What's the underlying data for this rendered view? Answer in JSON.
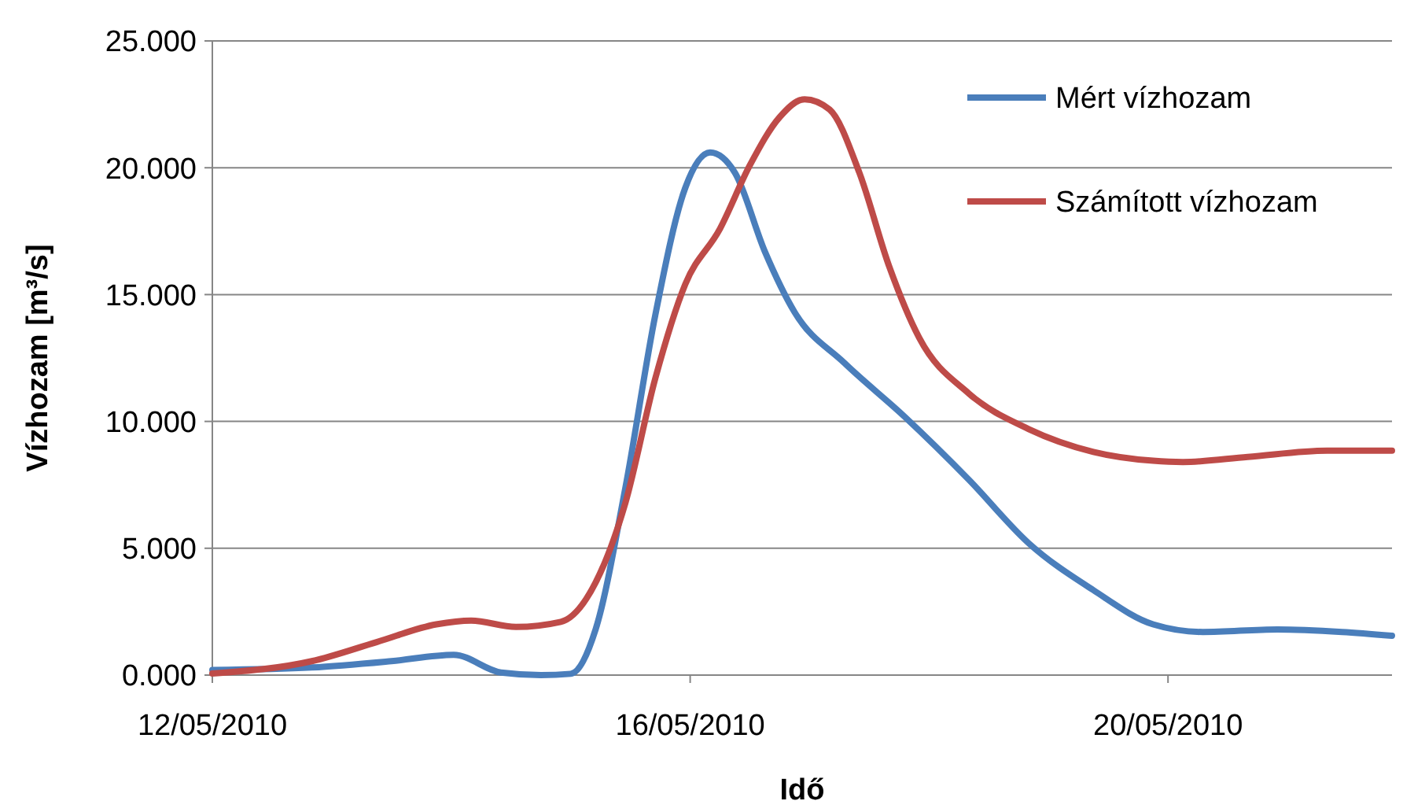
{
  "chart_data": {
    "type": "line",
    "xlabel": "Idő",
    "ylabel": "Vízhozam [m³/s]",
    "xlim": [
      "2010-05-12T00:00",
      "2010-05-21T21:00"
    ],
    "ylim": [
      0,
      25
    ],
    "xticks": [
      {
        "value": "2010-05-12",
        "label": "12/05/2010"
      },
      {
        "value": "2010-05-16",
        "label": "16/05/2010"
      },
      {
        "value": "2010-05-20",
        "label": "20/05/2010"
      }
    ],
    "yticks": [
      {
        "value": 0,
        "label": "0.000"
      },
      {
        "value": 5,
        "label": "5.000"
      },
      {
        "value": 10,
        "label": "10.000"
      },
      {
        "value": 15,
        "label": "15.000"
      },
      {
        "value": 20,
        "label": "20.000"
      },
      {
        "value": 25,
        "label": "25.000"
      }
    ],
    "grid": "y",
    "legend": "top right",
    "marker": "none",
    "line_style": "solid",
    "series": [
      {
        "name": "Mért vízhozam",
        "color": "#4a7ebb",
        "x": [
          "2010-05-12T00:00",
          "2010-05-12T20:00",
          "2010-05-13T12:00",
          "2010-05-14T00:30",
          "2010-05-14T10:00",
          "2010-05-14T18:00",
          "2010-05-15T00:00",
          "2010-05-15T05:00",
          "2010-05-15T11:00",
          "2010-05-15T17:00",
          "2010-05-15T23:00",
          "2010-05-16T04:00",
          "2010-05-16T09:00",
          "2010-05-16T15:00",
          "2010-05-16T21:00",
          "2010-05-17T07:00",
          "2010-05-17T19:00",
          "2010-05-18T08:00",
          "2010-05-18T20:00",
          "2010-05-19T09:00",
          "2010-05-19T21:00",
          "2010-05-20T07:00",
          "2010-05-20T22:00",
          "2010-05-21T11:00",
          "2010-05-21T21:00"
        ],
        "values": [
          0.2,
          0.3,
          0.55,
          0.8,
          0.1,
          0,
          0.05,
          1.8,
          7.4,
          14.2,
          19.2,
          20.6,
          19.8,
          16.7,
          14.3,
          12.3,
          10.2,
          7.7,
          5.2,
          3.35,
          2.0,
          1.7,
          1.8,
          1.7,
          1.55
        ]
      },
      {
        "name": "Számított vízhozam",
        "color": "#be4b48",
        "x": [
          "2010-05-12T00:00",
          "2010-05-12T20:00",
          "2010-05-13T09:00",
          "2010-05-13T21:00",
          "2010-05-14T04:00",
          "2010-05-14T13:00",
          "2010-05-14T22:00",
          "2010-05-15T05:00",
          "2010-05-15T11:00",
          "2010-05-15T17:00",
          "2010-05-15T23:00",
          "2010-05-16T06:00",
          "2010-05-16T12:00",
          "2010-05-16T18:00",
          "2010-05-16T23:00",
          "2010-05-17T04:00",
          "2010-05-17T10:00",
          "2010-05-17T16:00",
          "2010-05-17T22:00",
          "2010-05-18T08:00",
          "2010-05-18T20:00",
          "2010-05-19T09:00",
          "2010-05-19T21:00",
          "2010-05-20T03:00",
          "2010-05-20T16:00",
          "2010-05-21T08:00",
          "2010-05-21T21:00"
        ],
        "values": [
          0.06,
          0.55,
          1.3,
          2.0,
          2.15,
          1.9,
          2.1,
          3.65,
          6.8,
          11.7,
          15.4,
          17.6,
          20.1,
          22,
          22.7,
          22.3,
          19.8,
          16.1,
          13.3,
          11.1,
          9.7,
          8.8,
          8.45,
          8.4,
          8.6,
          8.85,
          8.85
        ]
      }
    ]
  }
}
